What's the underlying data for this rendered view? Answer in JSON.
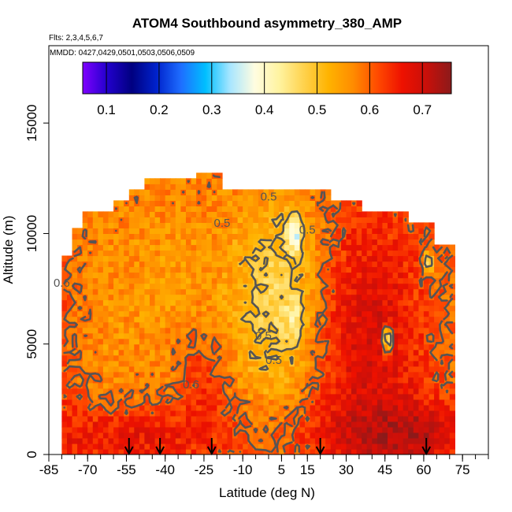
{
  "chart_data": {
    "type": "heatmap",
    "title": "ATOM4 Southbound asymmetry_380_AMP",
    "flights_label": "Flts: 2,3,4,5,6,7",
    "mmdd_label": "MMDD: 0427,0429,0501,0503,0506,0509",
    "xlabel": "Latitude (deg N)",
    "ylabel": "Altitude (m)",
    "xlim": [
      -85,
      85
    ],
    "ylim": [
      0,
      18500
    ],
    "x_ticks": [
      -85,
      -70,
      -55,
      -40,
      -25,
      -10,
      5,
      15,
      30,
      45,
      60,
      75
    ],
    "x_tick_labels": [
      "-85",
      "-70",
      "-55",
      "-40",
      "-25",
      "-10",
      "5",
      "15",
      "30",
      "45",
      "60",
      "75"
    ],
    "y_ticks": [
      0,
      5000,
      10000,
      15000
    ],
    "y_tick_labels": [
      "0",
      "5000",
      "10000",
      "15000"
    ],
    "colorbar": {
      "range": [
        0.055,
        0.755
      ],
      "ticks": [
        0.1,
        0.2,
        0.3,
        0.4,
        0.5,
        0.6,
        0.7
      ],
      "tick_labels": [
        "0.1",
        "0.2",
        "0.3",
        "0.4",
        "0.5",
        "0.6",
        "0.7"
      ],
      "colors": [
        "#7f00ff",
        "#2200cc",
        "#000080",
        "#0022cc",
        "#1e6eff",
        "#00bfff",
        "#a8e6ff",
        "#fffde0",
        "#fff3a0",
        "#ffd24d",
        "#ffb300",
        "#ff8c00",
        "#ff4a00",
        "#ee1100",
        "#c8100a",
        "#8b1a1a"
      ]
    },
    "contour_labels": [
      {
        "text": "0.5",
        "lat": -18,
        "alt": 10300
      },
      {
        "text": "0.5",
        "lat": 0,
        "alt": 11500
      },
      {
        "text": "0.5",
        "lat": 15,
        "alt": 10000
      },
      {
        "text": "0.5",
        "lat": -2,
        "alt": 5200
      },
      {
        "text": "0.5",
        "lat": 2,
        "alt": 4100
      },
      {
        "text": "0.6",
        "lat": -80,
        "alt": 7600
      },
      {
        "text": "0.6",
        "lat": -30,
        "alt": 3000
      }
    ],
    "arrow_latitudes": [
      -54,
      -42,
      -22,
      20,
      61
    ],
    "profile_bounds": [
      {
        "lat_from": -80,
        "lat_to": -76,
        "top": 9000
      },
      {
        "lat_from": -76,
        "lat_to": -72,
        "top": 10200
      },
      {
        "lat_from": -72,
        "lat_to": -66,
        "top": 10800
      },
      {
        "lat_from": -66,
        "lat_to": -60,
        "top": 11000
      },
      {
        "lat_from": -60,
        "lat_to": -54,
        "top": 11500
      },
      {
        "lat_from": -54,
        "lat_to": -48,
        "top": 12000
      },
      {
        "lat_from": -48,
        "lat_to": -38,
        "top": 12400
      },
      {
        "lat_from": -38,
        "lat_to": -28,
        "top": 12300
      },
      {
        "lat_from": -28,
        "lat_to": -18,
        "top": 12700
      },
      {
        "lat_from": -18,
        "lat_to": 24,
        "top": 12000
      },
      {
        "lat_from": 24,
        "lat_to": 36,
        "top": 11300
      },
      {
        "lat_from": 36,
        "lat_to": 55,
        "top": 11000
      },
      {
        "lat_from": 55,
        "lat_to": 65,
        "top": 10500
      },
      {
        "lat_from": 65,
        "lat_to": 72,
        "top": 9500
      }
    ],
    "field_features": [
      {
        "lat": -80,
        "alt": 6000,
        "lat_radius": 10,
        "alt_radius": 5000,
        "value": 0.63
      },
      {
        "lat": -55,
        "alt": 1000,
        "lat_radius": 45,
        "alt_radius": 1500,
        "value": 0.69
      },
      {
        "lat": -58,
        "alt": 6500,
        "lat_radius": 20,
        "alt_radius": 4500,
        "value": 0.56
      },
      {
        "lat": -35,
        "alt": 8000,
        "lat_radius": 18,
        "alt_radius": 3500,
        "value": 0.55
      },
      {
        "lat": -25,
        "alt": 3000,
        "lat_radius": 10,
        "alt_radius": 2500,
        "value": 0.64
      },
      {
        "lat": 5,
        "alt": 7000,
        "lat_radius": 18,
        "alt_radius": 4500,
        "value": 0.46
      },
      {
        "lat": 10,
        "alt": 10000,
        "lat_radius": 3,
        "alt_radius": 800,
        "value": 0.3
      },
      {
        "lat": 10,
        "alt": 6200,
        "lat_radius": 3,
        "alt_radius": 900,
        "value": 0.36
      },
      {
        "lat": 40,
        "alt": 5000,
        "lat_radius": 22,
        "alt_radius": 7000,
        "value": 0.69
      },
      {
        "lat": 46,
        "alt": 5200,
        "lat_radius": 1.5,
        "alt_radius": 600,
        "value": 0.35
      },
      {
        "lat": 62,
        "alt": 8700,
        "lat_radius": 2,
        "alt_radius": 500,
        "value": 0.45
      },
      {
        "lat": 50,
        "alt": 1000,
        "lat_radius": 30,
        "alt_radius": 1500,
        "value": 0.73
      }
    ]
  }
}
